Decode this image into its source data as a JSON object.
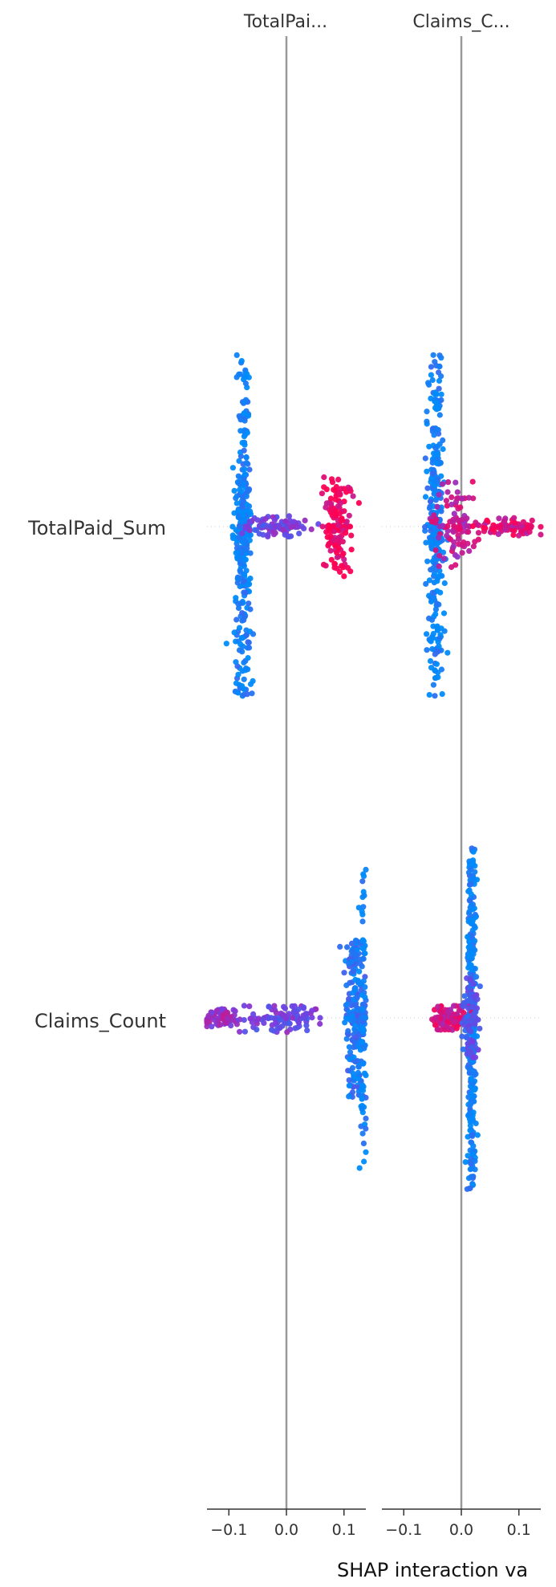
{
  "chart_data": {
    "type": "scatter",
    "subtype": "shap-interaction-summary",
    "title": "",
    "xlabel": "SHAP interaction va",
    "features": [
      "TotalPaid_Sum",
      "Claims_Count"
    ],
    "column_titles": [
      "TotalPai...",
      "Claims_C..."
    ],
    "row_labels": [
      "TotalPaid_Sum",
      "Claims_Count"
    ],
    "xlim": [
      [
        -0.138,
        0.138
      ],
      [
        -0.138,
        0.138
      ]
    ],
    "xticks": [
      -0.1,
      0.0,
      0.1
    ],
    "xtick_labels": [
      "−0.1",
      "0.0",
      "0.1"
    ],
    "color_scale": {
      "low": "#008bfb",
      "high": "#ff0052",
      "meaning": "feature value (low → high)"
    },
    "zero_line_color": "#999999",
    "panels": [
      {
        "row": "TotalPaid_Sum",
        "column": "TotalPaid_Sum",
        "clusters": [
          {
            "x_center": -0.075,
            "x_spread": 0.012,
            "y_half_height": 0.95,
            "count": 320,
            "color_value": 0.05
          },
          {
            "x_center": -0.02,
            "x_spread": 0.045,
            "y_half_height": 0.06,
            "count": 90,
            "color_value": 0.45
          },
          {
            "x_center": 0.09,
            "x_spread": 0.02,
            "y_half_height": 0.28,
            "count": 140,
            "color_value": 0.95
          }
        ]
      },
      {
        "row": "TotalPaid_Sum",
        "column": "Claims_Count",
        "clusters": [
          {
            "x_center": -0.045,
            "x_spread": 0.012,
            "y_half_height": 0.95,
            "count": 300,
            "color_value": 0.05
          },
          {
            "x_center": -0.01,
            "x_spread": 0.03,
            "y_half_height": 0.25,
            "count": 90,
            "color_value": 0.75
          },
          {
            "x_center": 0.08,
            "x_spread": 0.05,
            "y_half_height": 0.05,
            "count": 90,
            "color_value": 0.85
          }
        ]
      },
      {
        "row": "Claims_Count",
        "column": "TotalPaid_Sum",
        "clusters": [
          {
            "x_center": -0.11,
            "x_spread": 0.03,
            "y_half_height": 0.05,
            "count": 80,
            "color_value": 0.6
          },
          {
            "x_center": 0.0,
            "x_spread": 0.06,
            "y_half_height": 0.08,
            "count": 110,
            "color_value": 0.45
          },
          {
            "x_center": 0.12,
            "x_spread": 0.014,
            "y_half_height": 0.45,
            "count": 220,
            "color_value": 0.15
          },
          {
            "x_center": 0.133,
            "x_spread": 0.004,
            "y_half_height": 0.85,
            "count": 90,
            "color_value": 0.05
          }
        ]
      },
      {
        "row": "Claims_Count",
        "column": "Claims_Count",
        "clusters": [
          {
            "x_center": 0.018,
            "x_spread": 0.006,
            "y_half_height": 0.95,
            "count": 320,
            "color_value": 0.05
          },
          {
            "x_center": -0.02,
            "x_spread": 0.022,
            "y_half_height": 0.07,
            "count": 120,
            "color_value": 0.8
          },
          {
            "x_center": 0.015,
            "x_spread": 0.012,
            "y_half_height": 0.22,
            "count": 90,
            "color_value": 0.35
          }
        ]
      }
    ]
  }
}
